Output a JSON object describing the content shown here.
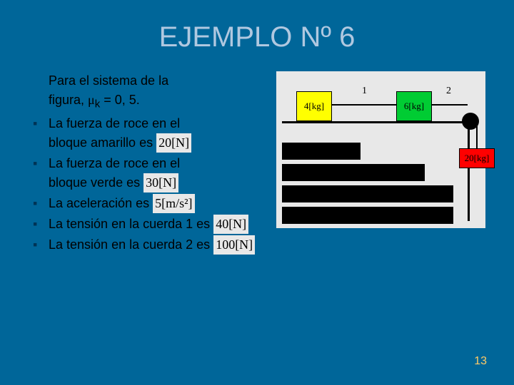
{
  "slide": {
    "title": "EJEMPLO Nº 6",
    "page_number": "13"
  },
  "intro": {
    "line1": "Para el sistema de la",
    "line2_a": "figura, ",
    "mu": "μ",
    "sub": "k",
    "line2_b": " = 0, 5."
  },
  "bullets": [
    {
      "t1": "La fuerza de roce en el",
      "t2": "bloque amarillo es",
      "val": "20[N]"
    },
    {
      "t1": "La fuerza de roce en el",
      "t2": "bloque verde es",
      "val": "30[N]"
    },
    {
      "t1": "La aceleración es",
      "t2": "",
      "val": "5[m/s²]"
    },
    {
      "t1": "La tensión en la cuerda 1 es",
      "t2": "",
      "val": "40[N]"
    },
    {
      "t1": "La tensión en la cuerda 2 es",
      "t2": "",
      "val": "100[N]"
    }
  ],
  "figure": {
    "label1": "1",
    "label2": "2",
    "block_yellow": "4[kg]",
    "block_green": "6[kg]",
    "block_red": "20[kg]",
    "colors": {
      "yellow": "#ffff00",
      "green": "#00cc33",
      "red": "#ff0000",
      "bg": "#e8e8e8"
    }
  },
  "style": {
    "background": "#006699",
    "title_color": "#b0c8e0",
    "page_num_color": "#ffcc66",
    "title_fontsize": 40,
    "body_fontsize": 18
  }
}
